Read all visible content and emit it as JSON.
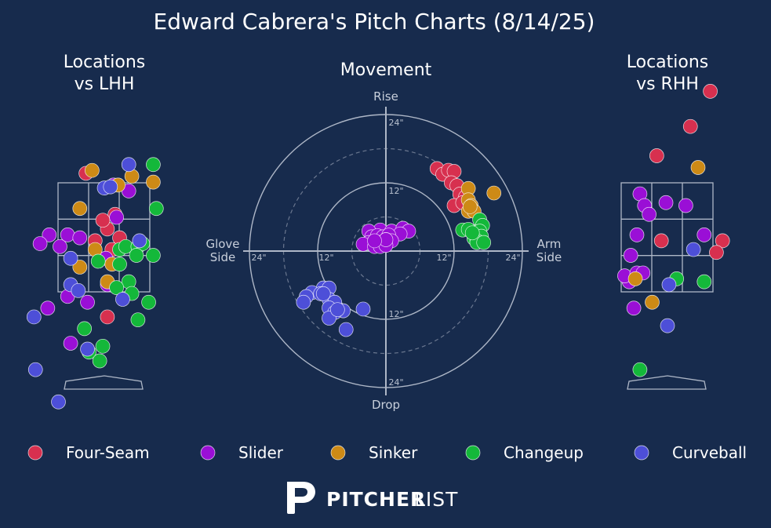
{
  "title": "Edward Cabrera's Pitch Charts (8/14/25)",
  "branding": {
    "bold": "PITCHER",
    "light": "LIST"
  },
  "colors": {
    "background": "#172b4d",
    "Four-Seam": "#d7304f",
    "Slider": "#9a0fd6",
    "Sinker": "#cd8a16",
    "Changeup": "#14b83a",
    "Curveball": "#4d4fd8"
  },
  "legend": [
    "Four-Seam",
    "Slider",
    "Sinker",
    "Changeup",
    "Curveball"
  ],
  "chart_data": [
    {
      "type": "scatter",
      "title": "Locations\nvs LHH",
      "xlim": [
        -2.3,
        2.3
      ],
      "ylim": [
        0,
        5.5
      ],
      "points": [
        {
          "x": -0.6,
          "y": 3.95,
          "pitch": "Four-Seam"
        },
        {
          "x": 0.1,
          "y": 3.0,
          "pitch": "Four-Seam"
        },
        {
          "x": 0.35,
          "y": 3.25,
          "pitch": "Four-Seam"
        },
        {
          "x": -0.05,
          "y": 3.15,
          "pitch": "Four-Seam"
        },
        {
          "x": 0.5,
          "y": 2.85,
          "pitch": "Four-Seam"
        },
        {
          "x": -0.3,
          "y": 2.8,
          "pitch": "Four-Seam"
        },
        {
          "x": 0.25,
          "y": 2.65,
          "pitch": "Four-Seam"
        },
        {
          "x": 0.1,
          "y": 1.5,
          "pitch": "Four-Seam"
        },
        {
          "x": 0.3,
          "y": 3.75,
          "pitch": "Slider"
        },
        {
          "x": 0.8,
          "y": 3.65,
          "pitch": "Slider"
        },
        {
          "x": -1.8,
          "y": 2.9,
          "pitch": "Slider"
        },
        {
          "x": -2.1,
          "y": 2.75,
          "pitch": "Slider"
        },
        {
          "x": -1.2,
          "y": 2.9,
          "pitch": "Slider"
        },
        {
          "x": -1.45,
          "y": 2.7,
          "pitch": "Slider"
        },
        {
          "x": -0.8,
          "y": 2.85,
          "pitch": "Slider"
        },
        {
          "x": 0.4,
          "y": 3.2,
          "pitch": "Slider"
        },
        {
          "x": 0.05,
          "y": 2.5,
          "pitch": "Slider"
        },
        {
          "x": 0.1,
          "y": 2.05,
          "pitch": "Slider"
        },
        {
          "x": -1.2,
          "y": 1.85,
          "pitch": "Slider"
        },
        {
          "x": -0.55,
          "y": 1.75,
          "pitch": "Slider"
        },
        {
          "x": -1.85,
          "y": 1.65,
          "pitch": "Slider"
        },
        {
          "x": -1.1,
          "y": 1.05,
          "pitch": "Slider"
        },
        {
          "x": -0.4,
          "y": 4.0,
          "pitch": "Sinker"
        },
        {
          "x": 0.9,
          "y": 3.9,
          "pitch": "Sinker"
        },
        {
          "x": 0.45,
          "y": 3.75,
          "pitch": "Sinker"
        },
        {
          "x": 1.6,
          "y": 3.8,
          "pitch": "Sinker"
        },
        {
          "x": -0.8,
          "y": 3.35,
          "pitch": "Sinker"
        },
        {
          "x": -0.3,
          "y": 2.65,
          "pitch": "Sinker"
        },
        {
          "x": -0.8,
          "y": 2.35,
          "pitch": "Sinker"
        },
        {
          "x": 0.25,
          "y": 2.4,
          "pitch": "Sinker"
        },
        {
          "x": 0.1,
          "y": 2.1,
          "pitch": "Sinker"
        },
        {
          "x": 1.6,
          "y": 4.1,
          "pitch": "Changeup"
        },
        {
          "x": 1.7,
          "y": 3.35,
          "pitch": "Changeup"
        },
        {
          "x": 0.5,
          "y": 2.65,
          "pitch": "Changeup"
        },
        {
          "x": 0.7,
          "y": 2.7,
          "pitch": "Changeup"
        },
        {
          "x": 1.1,
          "y": 2.7,
          "pitch": "Changeup"
        },
        {
          "x": 1.25,
          "y": 2.75,
          "pitch": "Changeup"
        },
        {
          "x": 1.05,
          "y": 2.55,
          "pitch": "Changeup"
        },
        {
          "x": 1.6,
          "y": 2.55,
          "pitch": "Changeup"
        },
        {
          "x": 0.5,
          "y": 2.4,
          "pitch": "Changeup"
        },
        {
          "x": -0.2,
          "y": 2.45,
          "pitch": "Changeup"
        },
        {
          "x": 0.8,
          "y": 2.1,
          "pitch": "Changeup"
        },
        {
          "x": 0.4,
          "y": 2.0,
          "pitch": "Changeup"
        },
        {
          "x": 0.9,
          "y": 1.9,
          "pitch": "Changeup"
        },
        {
          "x": 1.45,
          "y": 1.75,
          "pitch": "Changeup"
        },
        {
          "x": 1.1,
          "y": 1.45,
          "pitch": "Changeup"
        },
        {
          "x": -0.65,
          "y": 1.3,
          "pitch": "Changeup"
        },
        {
          "x": -0.05,
          "y": 1.0,
          "pitch": "Changeup"
        },
        {
          "x": -0.5,
          "y": 0.9,
          "pitch": "Changeup"
        },
        {
          "x": -0.15,
          "y": 0.75,
          "pitch": "Changeup"
        },
        {
          "x": 0.8,
          "y": 4.1,
          "pitch": "Curveball"
        },
        {
          "x": 0.0,
          "y": 3.7,
          "pitch": "Curveball"
        },
        {
          "x": 0.2,
          "y": 3.72,
          "pitch": "Curveball"
        },
        {
          "x": 1.15,
          "y": 2.8,
          "pitch": "Curveball"
        },
        {
          "x": -1.1,
          "y": 2.5,
          "pitch": "Curveball"
        },
        {
          "x": -1.1,
          "y": 2.05,
          "pitch": "Curveball"
        },
        {
          "x": -0.85,
          "y": 1.95,
          "pitch": "Curveball"
        },
        {
          "x": 0.6,
          "y": 1.8,
          "pitch": "Curveball"
        },
        {
          "x": -2.3,
          "y": 1.5,
          "pitch": "Curveball"
        },
        {
          "x": -0.55,
          "y": 0.95,
          "pitch": "Curveball"
        },
        {
          "x": -2.25,
          "y": 0.6,
          "pitch": "Curveball"
        },
        {
          "x": -1.5,
          "y": 0.05,
          "pitch": "Curveball"
        }
      ]
    },
    {
      "type": "scatter",
      "title": "Movement",
      "labels": {
        "top": "Rise",
        "bottom": "Drop",
        "left": "Glove\nSide",
        "right": "Arm\nSide"
      },
      "rings": [
        6,
        12,
        18,
        24
      ],
      "ring_labels": [
        "12\"",
        "24\""
      ],
      "xlim": [
        -24,
        24
      ],
      "ylim": [
        -24,
        24
      ],
      "points": [
        {
          "x": 9.0,
          "y": 14.5,
          "pitch": "Four-Seam"
        },
        {
          "x": 10.0,
          "y": 13.5,
          "pitch": "Four-Seam"
        },
        {
          "x": 11.0,
          "y": 14.2,
          "pitch": "Four-Seam"
        },
        {
          "x": 12.0,
          "y": 14.0,
          "pitch": "Four-Seam"
        },
        {
          "x": 11.5,
          "y": 12.0,
          "pitch": "Four-Seam"
        },
        {
          "x": 12.5,
          "y": 11.5,
          "pitch": "Four-Seam"
        },
        {
          "x": 13.0,
          "y": 10.0,
          "pitch": "Four-Seam"
        },
        {
          "x": 14.0,
          "y": 9.5,
          "pitch": "Four-Seam"
        },
        {
          "x": 12.0,
          "y": 8.0,
          "pitch": "Four-Seam"
        },
        {
          "x": 13.5,
          "y": 8.5,
          "pitch": "Four-Seam"
        },
        {
          "x": 14.5,
          "y": 11.0,
          "pitch": "Sinker"
        },
        {
          "x": 19.0,
          "y": 10.2,
          "pitch": "Sinker"
        },
        {
          "x": 14.5,
          "y": 9.0,
          "pitch": "Sinker"
        },
        {
          "x": 15.0,
          "y": 8.0,
          "pitch": "Sinker"
        },
        {
          "x": 14.5,
          "y": 7.0,
          "pitch": "Sinker"
        },
        {
          "x": 15.5,
          "y": 7.0,
          "pitch": "Sinker"
        },
        {
          "x": 14.8,
          "y": 7.8,
          "pitch": "Sinker"
        },
        {
          "x": 16.5,
          "y": 5.5,
          "pitch": "Changeup"
        },
        {
          "x": 17.0,
          "y": 4.5,
          "pitch": "Changeup"
        },
        {
          "x": 13.5,
          "y": 3.7,
          "pitch": "Changeup"
        },
        {
          "x": 15.0,
          "y": 3.5,
          "pitch": "Changeup"
        },
        {
          "x": 16.5,
          "y": 3.5,
          "pitch": "Changeup"
        },
        {
          "x": 16.8,
          "y": 2.6,
          "pitch": "Changeup"
        },
        {
          "x": 15.5,
          "y": 2.2,
          "pitch": "Changeup"
        },
        {
          "x": 16.0,
          "y": 1.8,
          "pitch": "Changeup"
        },
        {
          "x": 16.0,
          "y": 1.5,
          "pitch": "Changeup"
        },
        {
          "x": 17.2,
          "y": 1.5,
          "pitch": "Changeup"
        },
        {
          "x": 14.5,
          "y": 3.8,
          "pitch": "Changeup"
        },
        {
          "x": 15.2,
          "y": 3.2,
          "pitch": "Changeup"
        },
        {
          "x": -1.0,
          "y": 3.7,
          "pitch": "Slider"
        },
        {
          "x": 1.0,
          "y": 3.5,
          "pitch": "Slider"
        },
        {
          "x": 3.0,
          "y": 4.0,
          "pitch": "Slider"
        },
        {
          "x": 4.0,
          "y": 3.5,
          "pitch": "Slider"
        },
        {
          "x": 2.5,
          "y": 3.0,
          "pitch": "Slider"
        },
        {
          "x": -3.0,
          "y": 3.5,
          "pitch": "Slider"
        },
        {
          "x": -2.5,
          "y": 2.5,
          "pitch": "Slider"
        },
        {
          "x": -1.5,
          "y": 2.7,
          "pitch": "Slider"
        },
        {
          "x": -0.5,
          "y": 2.5,
          "pitch": "Slider"
        },
        {
          "x": 0.5,
          "y": 2.8,
          "pitch": "Slider"
        },
        {
          "x": -1.0,
          "y": 1.5,
          "pitch": "Slider"
        },
        {
          "x": 0.0,
          "y": 2.0,
          "pitch": "Slider"
        },
        {
          "x": 1.0,
          "y": 1.8,
          "pitch": "Slider"
        },
        {
          "x": -2.0,
          "y": 1.0,
          "pitch": "Slider"
        },
        {
          "x": -3.0,
          "y": 1.5,
          "pitch": "Slider"
        },
        {
          "x": -4.0,
          "y": 1.2,
          "pitch": "Slider"
        },
        {
          "x": -2.0,
          "y": 0.8,
          "pitch": "Slider"
        },
        {
          "x": -1.0,
          "y": 0.8,
          "pitch": "Slider"
        },
        {
          "x": 0.0,
          "y": 1.0,
          "pitch": "Slider"
        },
        {
          "x": 0.0,
          "y": 2.0,
          "pitch": "Slider"
        },
        {
          "x": -2.0,
          "y": 1.8,
          "pitch": "Slider"
        },
        {
          "x": -11.0,
          "y": -6.5,
          "pitch": "Curveball"
        },
        {
          "x": -10.0,
          "y": -6.5,
          "pitch": "Curveball"
        },
        {
          "x": -13.0,
          "y": -7.3,
          "pitch": "Curveball"
        },
        {
          "x": -14.0,
          "y": -8.0,
          "pitch": "Curveball"
        },
        {
          "x": -11.5,
          "y": -7.5,
          "pitch": "Curveball"
        },
        {
          "x": -10.0,
          "y": -8.5,
          "pitch": "Curveball"
        },
        {
          "x": -14.5,
          "y": -9.0,
          "pitch": "Curveball"
        },
        {
          "x": -9.0,
          "y": -9.0,
          "pitch": "Curveball"
        },
        {
          "x": -10.0,
          "y": -10.0,
          "pitch": "Curveball"
        },
        {
          "x": -7.5,
          "y": -10.5,
          "pitch": "Curveball"
        },
        {
          "x": -4.0,
          "y": -10.2,
          "pitch": "Curveball"
        },
        {
          "x": -9.0,
          "y": -10.8,
          "pitch": "Curveball"
        },
        {
          "x": -10.0,
          "y": -11.8,
          "pitch": "Curveball"
        },
        {
          "x": -7.0,
          "y": -13.8,
          "pitch": "Curveball"
        },
        {
          "x": -11.0,
          "y": -7.5,
          "pitch": "Curveball"
        },
        {
          "x": -8.5,
          "y": -10.3,
          "pitch": "Curveball"
        }
      ]
    },
    {
      "type": "scatter",
      "title": "Locations\nvs RHH",
      "xlim": [
        -2.3,
        2.3
      ],
      "ylim": [
        0,
        5.5
      ],
      "points": [
        {
          "x": 1.4,
          "y": 5.35,
          "pitch": "Four-Seam"
        },
        {
          "x": 0.75,
          "y": 4.75,
          "pitch": "Four-Seam"
        },
        {
          "x": -0.35,
          "y": 4.25,
          "pitch": "Four-Seam"
        },
        {
          "x": -0.2,
          "y": 2.8,
          "pitch": "Four-Seam"
        },
        {
          "x": 1.8,
          "y": 2.8,
          "pitch": "Four-Seam"
        },
        {
          "x": 1.6,
          "y": 2.6,
          "pitch": "Four-Seam"
        },
        {
          "x": -0.9,
          "y": 3.6,
          "pitch": "Slider"
        },
        {
          "x": -0.75,
          "y": 3.4,
          "pitch": "Slider"
        },
        {
          "x": -0.6,
          "y": 3.25,
          "pitch": "Slider"
        },
        {
          "x": -0.05,
          "y": 3.45,
          "pitch": "Slider"
        },
        {
          "x": 0.6,
          "y": 3.4,
          "pitch": "Slider"
        },
        {
          "x": -1.0,
          "y": 2.9,
          "pitch": "Slider"
        },
        {
          "x": 1.2,
          "y": 2.9,
          "pitch": "Slider"
        },
        {
          "x": -1.2,
          "y": 2.55,
          "pitch": "Slider"
        },
        {
          "x": -1.25,
          "y": 2.1,
          "pitch": "Slider"
        },
        {
          "x": -1.1,
          "y": 1.65,
          "pitch": "Slider"
        },
        {
          "x": -1.4,
          "y": 2.2,
          "pitch": "Slider"
        },
        {
          "x": -1.0,
          "y": 2.25,
          "pitch": "Slider"
        },
        {
          "x": -0.8,
          "y": 2.25,
          "pitch": "Slider"
        },
        {
          "x": 1.0,
          "y": 4.05,
          "pitch": "Sinker"
        },
        {
          "x": -1.05,
          "y": 2.15,
          "pitch": "Sinker"
        },
        {
          "x": -0.5,
          "y": 1.75,
          "pitch": "Sinker"
        },
        {
          "x": 0.3,
          "y": 2.15,
          "pitch": "Changeup"
        },
        {
          "x": 1.2,
          "y": 2.1,
          "pitch": "Changeup"
        },
        {
          "x": -0.9,
          "y": 0.6,
          "pitch": "Changeup"
        },
        {
          "x": 0.85,
          "y": 2.65,
          "pitch": "Curveball"
        },
        {
          "x": 0.05,
          "y": 2.05,
          "pitch": "Curveball"
        },
        {
          "x": 0.0,
          "y": 1.35,
          "pitch": "Curveball"
        }
      ]
    }
  ]
}
